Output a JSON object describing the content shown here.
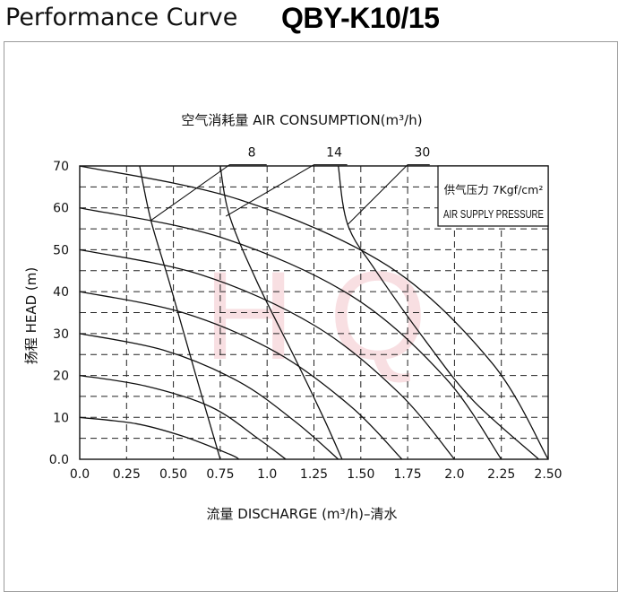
{
  "header": {
    "title": "Performance Curve",
    "model": "QBY-K10/15"
  },
  "chart_data": {
    "type": "line",
    "title": "空气消耗量 AIR CONSUMPTION(m³/h)",
    "xlabel": "流量 DISCHARGE (m³/h)–清水",
    "ylabel": "扬程 HEAD (m)",
    "xlim": [
      0,
      2.5
    ],
    "ylim": [
      0,
      70
    ],
    "x_ticks": [
      "0.0",
      "0.25",
      "0.50",
      "0.75",
      "1.0",
      "1.25",
      "1.50",
      "1.75",
      "2.0",
      "2.25",
      "2.50"
    ],
    "y_ticks": [
      "0.0",
      "10",
      "20",
      "30",
      "40",
      "50",
      "60",
      "70"
    ],
    "grid": true,
    "pressure_note": {
      "line1": "供气压力 7Kgf/cm²",
      "line2": "AIR SUPPLY PRESSURE"
    },
    "watermark": "H Q",
    "performance_curves": [
      {
        "x": [
          0,
          0.3,
          0.55,
          0.8,
          0.85
        ],
        "y": [
          10,
          8.5,
          5.5,
          1.2,
          0
        ]
      },
      {
        "x": [
          0,
          0.35,
          0.7,
          0.95,
          1.1
        ],
        "y": [
          20,
          17.5,
          12.5,
          5,
          0
        ]
      },
      {
        "x": [
          0,
          0.45,
          0.85,
          1.15,
          1.38
        ],
        "y": [
          30,
          26,
          18.5,
          9,
          0
        ]
      },
      {
        "x": [
          0,
          0.55,
          1.05,
          1.45,
          1.72
        ],
        "y": [
          40,
          35,
          25.5,
          12.5,
          0
        ]
      },
      {
        "x": [
          0,
          0.65,
          1.25,
          1.7,
          2.0
        ],
        "y": [
          50,
          44,
          32,
          16,
          0
        ]
      },
      {
        "x": [
          0,
          0.75,
          1.45,
          1.95,
          2.25
        ],
        "y": [
          60,
          53,
          39,
          19.5,
          0
        ]
      },
      {
        "x": [
          0,
          0.85,
          1.65,
          2.2,
          2.5
        ],
        "y": [
          70,
          62,
          46,
          23,
          0
        ]
      }
    ],
    "air_consumption_curves": [
      {
        "label": "8",
        "x": [
          0.32,
          0.38,
          0.48,
          0.62,
          0.75
        ],
        "y": [
          70,
          57,
          42,
          20,
          0
        ]
      },
      {
        "label": "14",
        "x": [
          0.75,
          0.8,
          0.95,
          1.15,
          1.3,
          1.4
        ],
        "y": [
          70,
          58,
          42,
          24,
          10,
          0
        ]
      },
      {
        "label": "30",
        "x": [
          1.38,
          1.43,
          1.58,
          1.85,
          2.1,
          2.45
        ],
        "y": [
          70,
          56,
          45,
          28,
          14,
          0
        ]
      }
    ],
    "air_labels": [
      {
        "label": "8",
        "leader_x": [
          0.38,
          0.8
        ],
        "leader_y": [
          57,
          69
        ],
        "text_dx": 0.95
      },
      {
        "label": "14",
        "leader_x": [
          0.78,
          1.25
        ],
        "leader_y": [
          58,
          69
        ],
        "text_dx": 1.38
      },
      {
        "label": "30",
        "leader_x": [
          1.43,
          1.75
        ],
        "leader_y": [
          56,
          69
        ],
        "text_dx": 1.82
      }
    ]
  }
}
